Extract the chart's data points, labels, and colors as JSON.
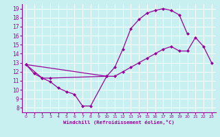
{
  "xlabel": "Windchill (Refroidissement éolien,°C)",
  "background_color": "#c8f0f0",
  "grid_color": "#ffffff",
  "line_color": "#990099",
  "xlim": [
    -0.5,
    23.5
  ],
  "ylim": [
    7.5,
    19.5
  ],
  "yticks": [
    8,
    9,
    10,
    11,
    12,
    13,
    14,
    15,
    16,
    17,
    18,
    19
  ],
  "xticks": [
    0,
    1,
    2,
    3,
    4,
    5,
    6,
    7,
    8,
    9,
    10,
    11,
    12,
    13,
    14,
    15,
    16,
    17,
    18,
    19,
    20,
    21,
    22,
    23
  ],
  "series": [
    {
      "x": [
        0,
        1,
        2,
        3,
        4,
        5,
        6,
        7,
        8,
        10
      ],
      "y": [
        12.8,
        11.8,
        11.3,
        10.9,
        10.2,
        9.8,
        9.5,
        8.2,
        8.2,
        11.5
      ]
    },
    {
      "x": [
        0,
        2,
        3,
        10,
        11,
        12,
        13,
        14,
        15,
        16,
        17,
        18,
        19,
        20,
        21,
        22,
        23
      ],
      "y": [
        12.8,
        11.3,
        11.3,
        11.5,
        11.5,
        12.0,
        12.5,
        13.0,
        13.5,
        14.0,
        14.5,
        14.8,
        14.3,
        14.3,
        15.8,
        14.8,
        13.0
      ]
    },
    {
      "x": [
        0,
        10,
        11,
        12,
        13,
        14,
        15,
        16,
        17,
        18,
        19,
        20
      ],
      "y": [
        12.8,
        11.5,
        12.5,
        14.5,
        16.8,
        17.8,
        18.5,
        18.8,
        19.0,
        18.8,
        18.3,
        16.2
      ]
    }
  ]
}
